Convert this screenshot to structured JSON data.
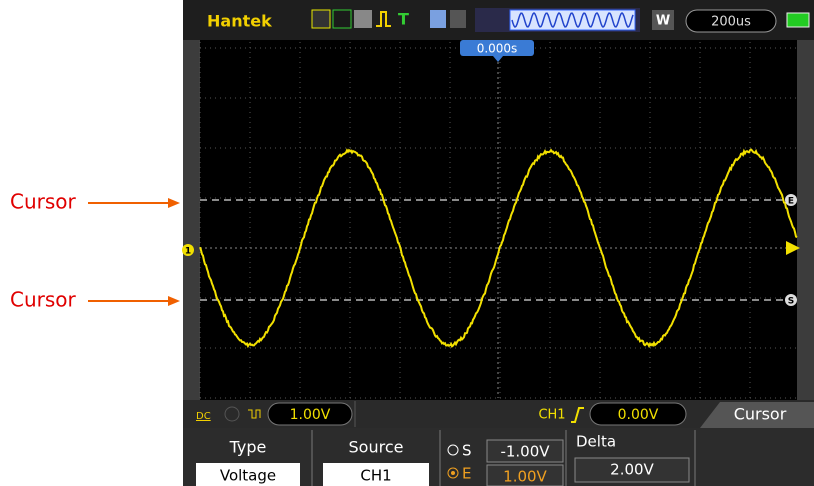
{
  "header": {
    "brand": "Hantek",
    "mode": "W",
    "timebase": "200us",
    "trigger_position": "0.000s"
  },
  "markers": {
    "channel": "1",
    "cursor_end": "E",
    "cursor_start": "S"
  },
  "status": {
    "coupling": "DC",
    "ch1_scale": "1.00V",
    "trigger_source": "CH1",
    "trigger_level": "0.00V",
    "menu_title": "Cursor"
  },
  "menu": {
    "type": {
      "label": "Type",
      "value": "Voltage"
    },
    "source": {
      "label": "Source",
      "value": "CH1"
    },
    "cursors": {
      "s_label": "S",
      "s_value": "-1.00V",
      "e_label": "E",
      "e_value": "1.00V"
    },
    "delta": {
      "label": "Delta",
      "value": "2.00V"
    }
  },
  "annotations": [
    "Cursor",
    "Cursor"
  ]
}
